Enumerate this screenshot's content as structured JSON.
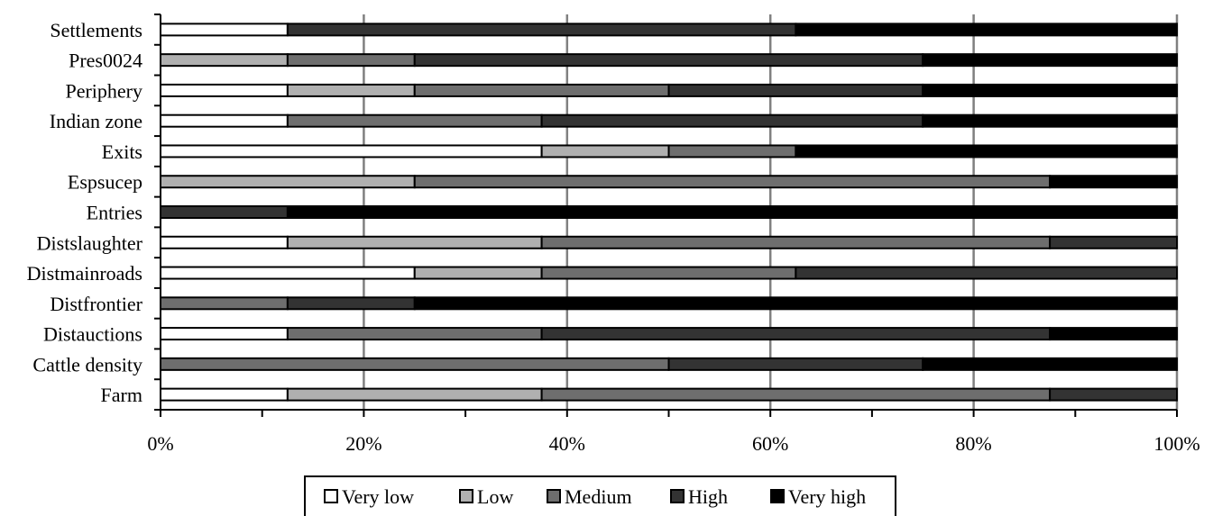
{
  "chart_data": {
    "type": "bar",
    "orientation": "horizontal",
    "stacked": "percent",
    "title": "",
    "xlabel": "",
    "ylabel": "",
    "xlim": [
      0,
      100
    ],
    "xticks": [
      "0%",
      "20%",
      "40%",
      "60%",
      "80%",
      "100%"
    ],
    "grid": "vertical",
    "legend_position": "bottom",
    "categories": [
      "Farm",
      "Cattle density",
      "Distauctions",
      "Distfrontier",
      "Distmainroads",
      "Distslaughter",
      "Entries",
      "Espsucep",
      "Exits",
      "Indian zone",
      "Periphery",
      "Pres0024",
      "Settlements"
    ],
    "series": [
      {
        "name": "Very low",
        "color": "#ffffff",
        "values": [
          12.5,
          0,
          12.5,
          0,
          25,
          12.5,
          0,
          0,
          37.5,
          12.5,
          12.5,
          0,
          12.5
        ]
      },
      {
        "name": "Low",
        "color": "#b0b0b0",
        "values": [
          25,
          0,
          0,
          0,
          12.5,
          25,
          0,
          25,
          12.5,
          0,
          12.5,
          12.5,
          0
        ]
      },
      {
        "name": "Medium",
        "color": "#6e6e6e",
        "values": [
          50,
          50,
          25,
          12.5,
          25,
          50,
          0,
          62.5,
          12.5,
          25,
          25,
          12.5,
          0
        ]
      },
      {
        "name": "High",
        "color": "#333333",
        "values": [
          12.5,
          25,
          50,
          12.5,
          37.5,
          12.5,
          12.5,
          0,
          0,
          37.5,
          25,
          50,
          50
        ]
      },
      {
        "name": "Very high",
        "color": "#000000",
        "values": [
          0,
          25,
          12.5,
          75,
          0,
          0,
          87.5,
          12.5,
          37.5,
          25,
          25,
          25,
          37.5
        ]
      }
    ]
  }
}
